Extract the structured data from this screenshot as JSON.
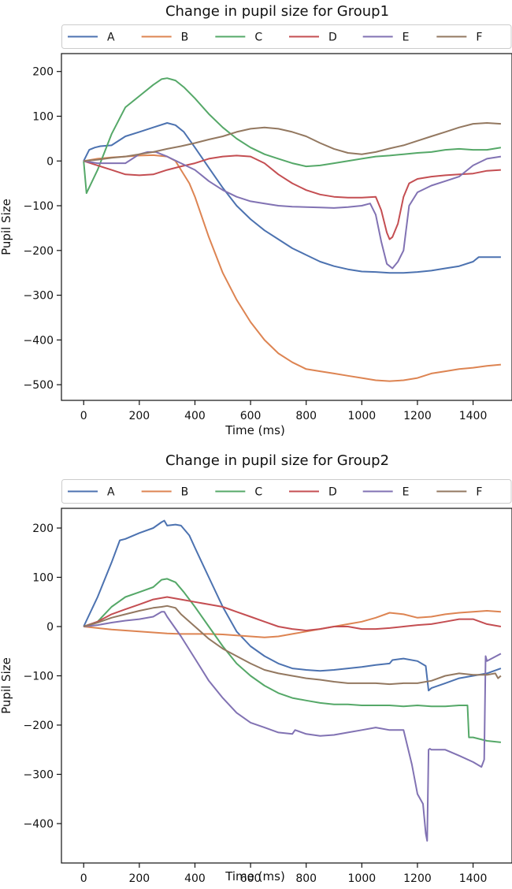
{
  "chart_data": [
    {
      "type": "line",
      "title": "Change in pupil size for Group1",
      "xlabel": "Time (ms)",
      "ylabel": "Pupil Size",
      "xlim": [
        -80,
        1540
      ],
      "ylim": [
        -535,
        240
      ],
      "xticks": [
        0,
        200,
        400,
        600,
        800,
        1000,
        1200,
        1400
      ],
      "yticks": [
        200,
        100,
        0,
        -100,
        -200,
        -300,
        -400,
        -500
      ],
      "tick_labels_x": [
        "0",
        "200",
        "400",
        "600",
        "800",
        "1000",
        "1200",
        "1400"
      ],
      "tick_labels_y": [
        "200",
        "100",
        "0",
        "−100",
        "−200",
        "−300",
        "−400",
        "−500"
      ],
      "legend_placement": "top, above plot, 6 columns",
      "series": [
        {
          "name": "A",
          "color": "#4c72b0",
          "x": [
            0,
            20,
            40,
            60,
            100,
            150,
            200,
            250,
            300,
            330,
            360,
            400,
            450,
            500,
            550,
            600,
            650,
            700,
            750,
            800,
            850,
            900,
            950,
            1000,
            1050,
            1100,
            1150,
            1200,
            1250,
            1300,
            1350,
            1400,
            1420,
            1450,
            1500
          ],
          "values": [
            0,
            25,
            30,
            33,
            35,
            55,
            65,
            75,
            85,
            80,
            65,
            30,
            -15,
            -60,
            -100,
            -130,
            -155,
            -175,
            -195,
            -210,
            -225,
            -235,
            -242,
            -247,
            -248,
            -250,
            -250,
            -248,
            -245,
            -240,
            -235,
            -225,
            -215,
            -215,
            -215
          ]
        },
        {
          "name": "B",
          "color": "#dd8452",
          "x": [
            0,
            50,
            100,
            150,
            200,
            250,
            300,
            330,
            350,
            380,
            400,
            450,
            500,
            550,
            600,
            650,
            700,
            750,
            800,
            850,
            900,
            950,
            1000,
            1050,
            1100,
            1150,
            1200,
            1250,
            1300,
            1350,
            1400,
            1450,
            1500
          ],
          "values": [
            0,
            5,
            8,
            10,
            12,
            13,
            10,
            0,
            -20,
            -50,
            -80,
            -170,
            -250,
            -310,
            -360,
            -400,
            -430,
            -450,
            -465,
            -470,
            -475,
            -480,
            -485,
            -490,
            -492,
            -490,
            -485,
            -475,
            -470,
            -465,
            -462,
            -458,
            -455
          ]
        },
        {
          "name": "C",
          "color": "#55a868",
          "x": [
            0,
            10,
            50,
            100,
            150,
            200,
            250,
            280,
            300,
            330,
            360,
            400,
            450,
            500,
            550,
            600,
            650,
            700,
            750,
            800,
            850,
            900,
            950,
            1000,
            1050,
            1100,
            1150,
            1200,
            1250,
            1300,
            1350,
            1400,
            1450,
            1500
          ],
          "values": [
            0,
            -72,
            -20,
            60,
            120,
            145,
            170,
            183,
            185,
            180,
            165,
            140,
            105,
            75,
            50,
            30,
            15,
            5,
            -5,
            -12,
            -10,
            -5,
            0,
            5,
            10,
            12,
            15,
            18,
            20,
            25,
            27,
            25,
            25,
            30
          ]
        },
        {
          "name": "D",
          "color": "#c44e52",
          "x": [
            0,
            50,
            100,
            150,
            200,
            250,
            300,
            350,
            400,
            450,
            500,
            550,
            600,
            650,
            700,
            750,
            800,
            850,
            900,
            950,
            1000,
            1050,
            1070,
            1090,
            1100,
            1110,
            1130,
            1150,
            1170,
            1200,
            1250,
            1300,
            1350,
            1400,
            1450,
            1500
          ],
          "values": [
            0,
            -10,
            -20,
            -30,
            -32,
            -30,
            -20,
            -12,
            -5,
            5,
            10,
            12,
            10,
            -5,
            -30,
            -50,
            -65,
            -75,
            -80,
            -82,
            -82,
            -80,
            -110,
            -160,
            -175,
            -170,
            -140,
            -80,
            -50,
            -40,
            -35,
            -32,
            -30,
            -28,
            -22,
            -20
          ]
        },
        {
          "name": "E",
          "color": "#8172b3",
          "x": [
            0,
            50,
            100,
            150,
            200,
            230,
            260,
            300,
            350,
            400,
            450,
            500,
            550,
            600,
            650,
            700,
            750,
            800,
            850,
            900,
            950,
            1000,
            1030,
            1050,
            1070,
            1090,
            1110,
            1130,
            1150,
            1170,
            1200,
            1250,
            1300,
            1350,
            1400,
            1450,
            1500
          ],
          "values": [
            0,
            -5,
            -5,
            -5,
            15,
            20,
            20,
            10,
            -5,
            -20,
            -45,
            -65,
            -80,
            -90,
            -95,
            -100,
            -102,
            -103,
            -104,
            -105,
            -103,
            -100,
            -95,
            -120,
            -180,
            -230,
            -240,
            -225,
            -200,
            -100,
            -70,
            -55,
            -45,
            -35,
            -10,
            5,
            10
          ]
        },
        {
          "name": "F",
          "color": "#937860",
          "x": [
            0,
            50,
            100,
            150,
            200,
            250,
            300,
            350,
            400,
            450,
            500,
            550,
            600,
            650,
            700,
            750,
            800,
            850,
            900,
            950,
            1000,
            1050,
            1100,
            1150,
            1200,
            1250,
            1300,
            1350,
            1400,
            1450,
            1500
          ],
          "values": [
            0,
            3,
            7,
            10,
            15,
            20,
            27,
            33,
            40,
            48,
            55,
            65,
            72,
            75,
            72,
            65,
            55,
            40,
            27,
            18,
            15,
            20,
            28,
            35,
            45,
            55,
            65,
            75,
            83,
            85,
            83
          ]
        }
      ],
      "legend_entries": [
        "A",
        "B",
        "C",
        "D",
        "E",
        "F"
      ]
    },
    {
      "type": "line",
      "title": "Change in pupil size for Group2",
      "xlabel": "Time (ms)",
      "ylabel": "Pupil Size",
      "xlim": [
        -80,
        1540
      ],
      "ylim": [
        -480,
        240
      ],
      "xticks": [
        0,
        200,
        400,
        600,
        800,
        1000,
        1200,
        1400
      ],
      "yticks": [
        200,
        100,
        0,
        -100,
        -200,
        -300,
        -400
      ],
      "tick_labels_x": [
        "0",
        "200",
        "400",
        "600",
        "800",
        "1000",
        "1200",
        "1400"
      ],
      "tick_labels_y": [
        "200",
        "100",
        "0",
        "−100",
        "−200",
        "−300",
        "−400"
      ],
      "legend_placement": "top, above plot, 6 columns",
      "series": [
        {
          "name": "A",
          "color": "#4c72b0",
          "x": [
            0,
            50,
            100,
            130,
            150,
            200,
            250,
            280,
            290,
            300,
            330,
            350,
            380,
            400,
            450,
            500,
            550,
            600,
            650,
            700,
            750,
            800,
            850,
            900,
            950,
            1000,
            1050,
            1100,
            1110,
            1150,
            1200,
            1230,
            1240,
            1250,
            1300,
            1350,
            1400,
            1450,
            1500
          ],
          "values": [
            0,
            60,
            130,
            175,
            178,
            190,
            200,
            212,
            215,
            205,
            207,
            205,
            185,
            160,
            100,
            40,
            -10,
            -40,
            -60,
            -75,
            -85,
            -88,
            -90,
            -88,
            -85,
            -82,
            -78,
            -75,
            -68,
            -65,
            -70,
            -80,
            -130,
            -125,
            -115,
            -105,
            -100,
            -95,
            -85
          ]
        },
        {
          "name": "B",
          "color": "#dd8452",
          "x": [
            0,
            50,
            100,
            150,
            200,
            250,
            300,
            350,
            400,
            450,
            500,
            550,
            600,
            650,
            700,
            750,
            800,
            850,
            900,
            950,
            1000,
            1050,
            1100,
            1150,
            1200,
            1250,
            1300,
            1350,
            1400,
            1450,
            1500
          ],
          "values": [
            0,
            -3,
            -6,
            -8,
            -10,
            -12,
            -14,
            -15,
            -15,
            -15,
            -16,
            -18,
            -20,
            -22,
            -20,
            -15,
            -10,
            -5,
            0,
            5,
            10,
            18,
            28,
            25,
            18,
            20,
            25,
            28,
            30,
            32,
            30
          ]
        },
        {
          "name": "C",
          "color": "#55a868",
          "x": [
            0,
            50,
            100,
            150,
            200,
            250,
            280,
            300,
            330,
            360,
            400,
            450,
            500,
            550,
            600,
            650,
            700,
            750,
            800,
            850,
            900,
            950,
            1000,
            1050,
            1100,
            1150,
            1200,
            1250,
            1300,
            1350,
            1380,
            1385,
            1400,
            1450,
            1500
          ],
          "values": [
            0,
            10,
            40,
            60,
            70,
            80,
            95,
            97,
            90,
            70,
            40,
            0,
            -40,
            -75,
            -100,
            -120,
            -135,
            -145,
            -150,
            -155,
            -158,
            -158,
            -160,
            -160,
            -160,
            -162,
            -160,
            -162,
            -162,
            -160,
            -160,
            -225,
            -225,
            -232,
            -235
          ]
        },
        {
          "name": "D",
          "color": "#c44e52",
          "x": [
            0,
            50,
            100,
            150,
            200,
            250,
            300,
            350,
            400,
            450,
            500,
            550,
            600,
            650,
            700,
            750,
            800,
            850,
            900,
            950,
            1000,
            1050,
            1100,
            1150,
            1200,
            1250,
            1300,
            1350,
            1400,
            1450,
            1500
          ],
          "values": [
            0,
            10,
            25,
            35,
            45,
            55,
            60,
            55,
            50,
            45,
            40,
            30,
            20,
            10,
            0,
            -5,
            -8,
            -5,
            0,
            0,
            -5,
            -5,
            -3,
            0,
            3,
            5,
            10,
            15,
            15,
            5,
            0
          ]
        },
        {
          "name": "E",
          "color": "#8172b3",
          "x": [
            0,
            50,
            100,
            150,
            200,
            250,
            280,
            290,
            300,
            350,
            400,
            450,
            500,
            550,
            600,
            650,
            700,
            750,
            760,
            770,
            800,
            850,
            900,
            950,
            1000,
            1050,
            1100,
            1150,
            1180,
            1200,
            1220,
            1230,
            1235,
            1240,
            1245,
            1250,
            1300,
            1350,
            1400,
            1430,
            1440,
            1445,
            1450,
            1500
          ],
          "values": [
            0,
            3,
            8,
            12,
            15,
            20,
            30,
            30,
            20,
            -20,
            -65,
            -110,
            -145,
            -175,
            -195,
            -205,
            -215,
            -218,
            -210,
            -212,
            -218,
            -222,
            -220,
            -215,
            -210,
            -205,
            -210,
            -210,
            -280,
            -340,
            -360,
            -420,
            -435,
            -250,
            -248,
            -250,
            -250,
            -262,
            -275,
            -285,
            -270,
            -60,
            -70,
            -55
          ]
        },
        {
          "name": "F",
          "color": "#937860",
          "x": [
            0,
            50,
            100,
            150,
            200,
            250,
            280,
            300,
            330,
            350,
            400,
            450,
            500,
            550,
            600,
            650,
            700,
            750,
            800,
            850,
            900,
            950,
            1000,
            1050,
            1100,
            1150,
            1200,
            1250,
            1300,
            1350,
            1400,
            1450,
            1480,
            1490,
            1500
          ],
          "values": [
            0,
            8,
            18,
            25,
            32,
            38,
            40,
            42,
            38,
            25,
            0,
            -25,
            -45,
            -60,
            -75,
            -88,
            -95,
            -100,
            -105,
            -108,
            -112,
            -115,
            -115,
            -115,
            -117,
            -115,
            -115,
            -110,
            -100,
            -95,
            -98,
            -98,
            -95,
            -105,
            -100
          ]
        }
      ],
      "legend_entries": [
        "A",
        "B",
        "C",
        "D",
        "E",
        "F"
      ]
    }
  ]
}
